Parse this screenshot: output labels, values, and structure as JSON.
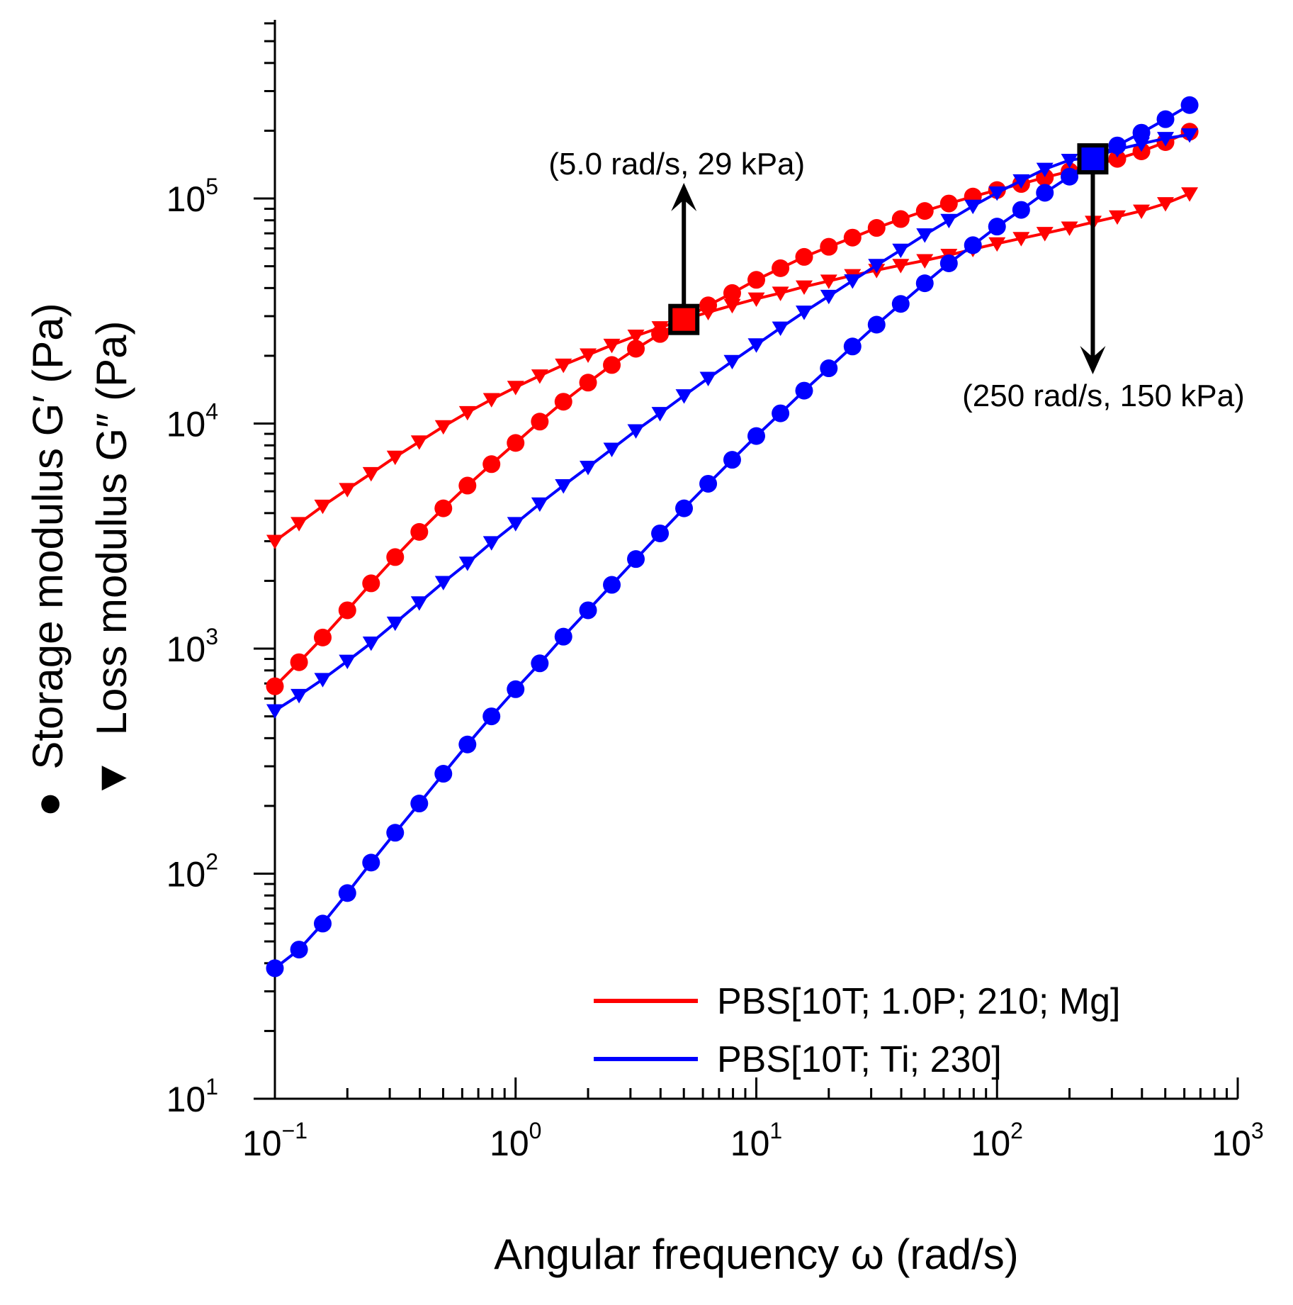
{
  "chart_data": {
    "type": "scatter",
    "x_scale": "log",
    "y_scale": "log",
    "xlim": [
      0.1,
      1000
    ],
    "ylim": [
      10,
      600000
    ],
    "xlabel": "Angular frequency ω (rad/s)",
    "ylabel_marker_storage": "●",
    "ylabel_storage": "Storage modulus G′ (Pa)",
    "ylabel_marker_loss": "▼",
    "ylabel_loss": "Loss modulus G″ (Pa)",
    "x_ticks": [
      {
        "base": "10",
        "exp": "−1"
      },
      {
        "base": "10",
        "exp": "0"
      },
      {
        "base": "10",
        "exp": "1"
      },
      {
        "base": "10",
        "exp": "2"
      },
      {
        "base": "10",
        "exp": "3"
      }
    ],
    "y_ticks": [
      {
        "base": "10",
        "exp": "1"
      },
      {
        "base": "10",
        "exp": "2"
      },
      {
        "base": "10",
        "exp": "3"
      },
      {
        "base": "10",
        "exp": "4"
      },
      {
        "base": "10",
        "exp": "5"
      }
    ],
    "grid": false,
    "legend_position": "bottom-right",
    "marker_legend": {
      "circle": "Storage modulus G′",
      "triangle": "Loss modulus G″"
    },
    "x": [
      0.1,
      0.126,
      0.158,
      0.2,
      0.251,
      0.316,
      0.398,
      0.501,
      0.631,
      0.794,
      1.0,
      1.26,
      1.58,
      2.0,
      2.51,
      3.16,
      3.98,
      5.01,
      6.31,
      7.94,
      10.0,
      12.6,
      15.8,
      20.0,
      25.1,
      31.6,
      39.8,
      50.1,
      63.1,
      79.4,
      100,
      126,
      158,
      200,
      251,
      316,
      398,
      501,
      631
    ],
    "series": [
      {
        "name": "PBS[10T; 1.0P; 210; Mg]",
        "color": "#ff0000",
        "storage_modulus_G1": [
          680,
          870,
          1120,
          1480,
          1950,
          2550,
          3300,
          4200,
          5300,
          6600,
          8200,
          10200,
          12500,
          15200,
          18200,
          21500,
          25000,
          29000,
          33500,
          38000,
          43500,
          49000,
          55000,
          61000,
          67000,
          74000,
          81000,
          88000,
          95000,
          102000,
          109000,
          116000,
          124000,
          132000,
          140000,
          150000,
          162000,
          178000,
          198000
        ],
        "loss_modulus_G2": [
          3000,
          3600,
          4300,
          5100,
          6000,
          7100,
          8300,
          9700,
          11200,
          12800,
          14500,
          16300,
          18200,
          20200,
          22300,
          24500,
          26700,
          29000,
          31200,
          33500,
          35800,
          38000,
          40500,
          43000,
          45500,
          48000,
          50500,
          53000,
          56000,
          59500,
          63000,
          66500,
          70000,
          74000,
          78500,
          83000,
          88000,
          95000,
          105000
        ]
      },
      {
        "name": "PBS[10T; Ti; 230]",
        "color": "#0000ff",
        "storage_modulus_G1": [
          38,
          46,
          60,
          82,
          112,
          152,
          205,
          278,
          375,
          500,
          660,
          860,
          1130,
          1480,
          1920,
          2500,
          3250,
          4200,
          5400,
          6900,
          8800,
          11100,
          14000,
          17600,
          22000,
          27500,
          34000,
          42000,
          51500,
          62000,
          75000,
          89000,
          106000,
          125000,
          150000,
          172000,
          196000,
          225000,
          260000
        ],
        "loss_modulus_G2": [
          530,
          620,
          730,
          880,
          1060,
          1300,
          1600,
          1970,
          2400,
          2960,
          3600,
          4400,
          5300,
          6400,
          7700,
          9300,
          11100,
          13300,
          15900,
          18900,
          22400,
          26600,
          31300,
          36800,
          43100,
          50500,
          59000,
          69000,
          80000,
          92500,
          106000,
          120000,
          135000,
          148000,
          153000,
          165000,
          175000,
          185000,
          192000
        ]
      }
    ],
    "annotations": [
      {
        "x": 5.0,
        "y": 29000,
        "text": "(5.0 rad/s, 29 kPa)",
        "color": "#ff0000"
      },
      {
        "x": 250,
        "y": 150000,
        "text": "(250 rad/s, 150 kPa)",
        "color": "#0000ff"
      }
    ]
  }
}
